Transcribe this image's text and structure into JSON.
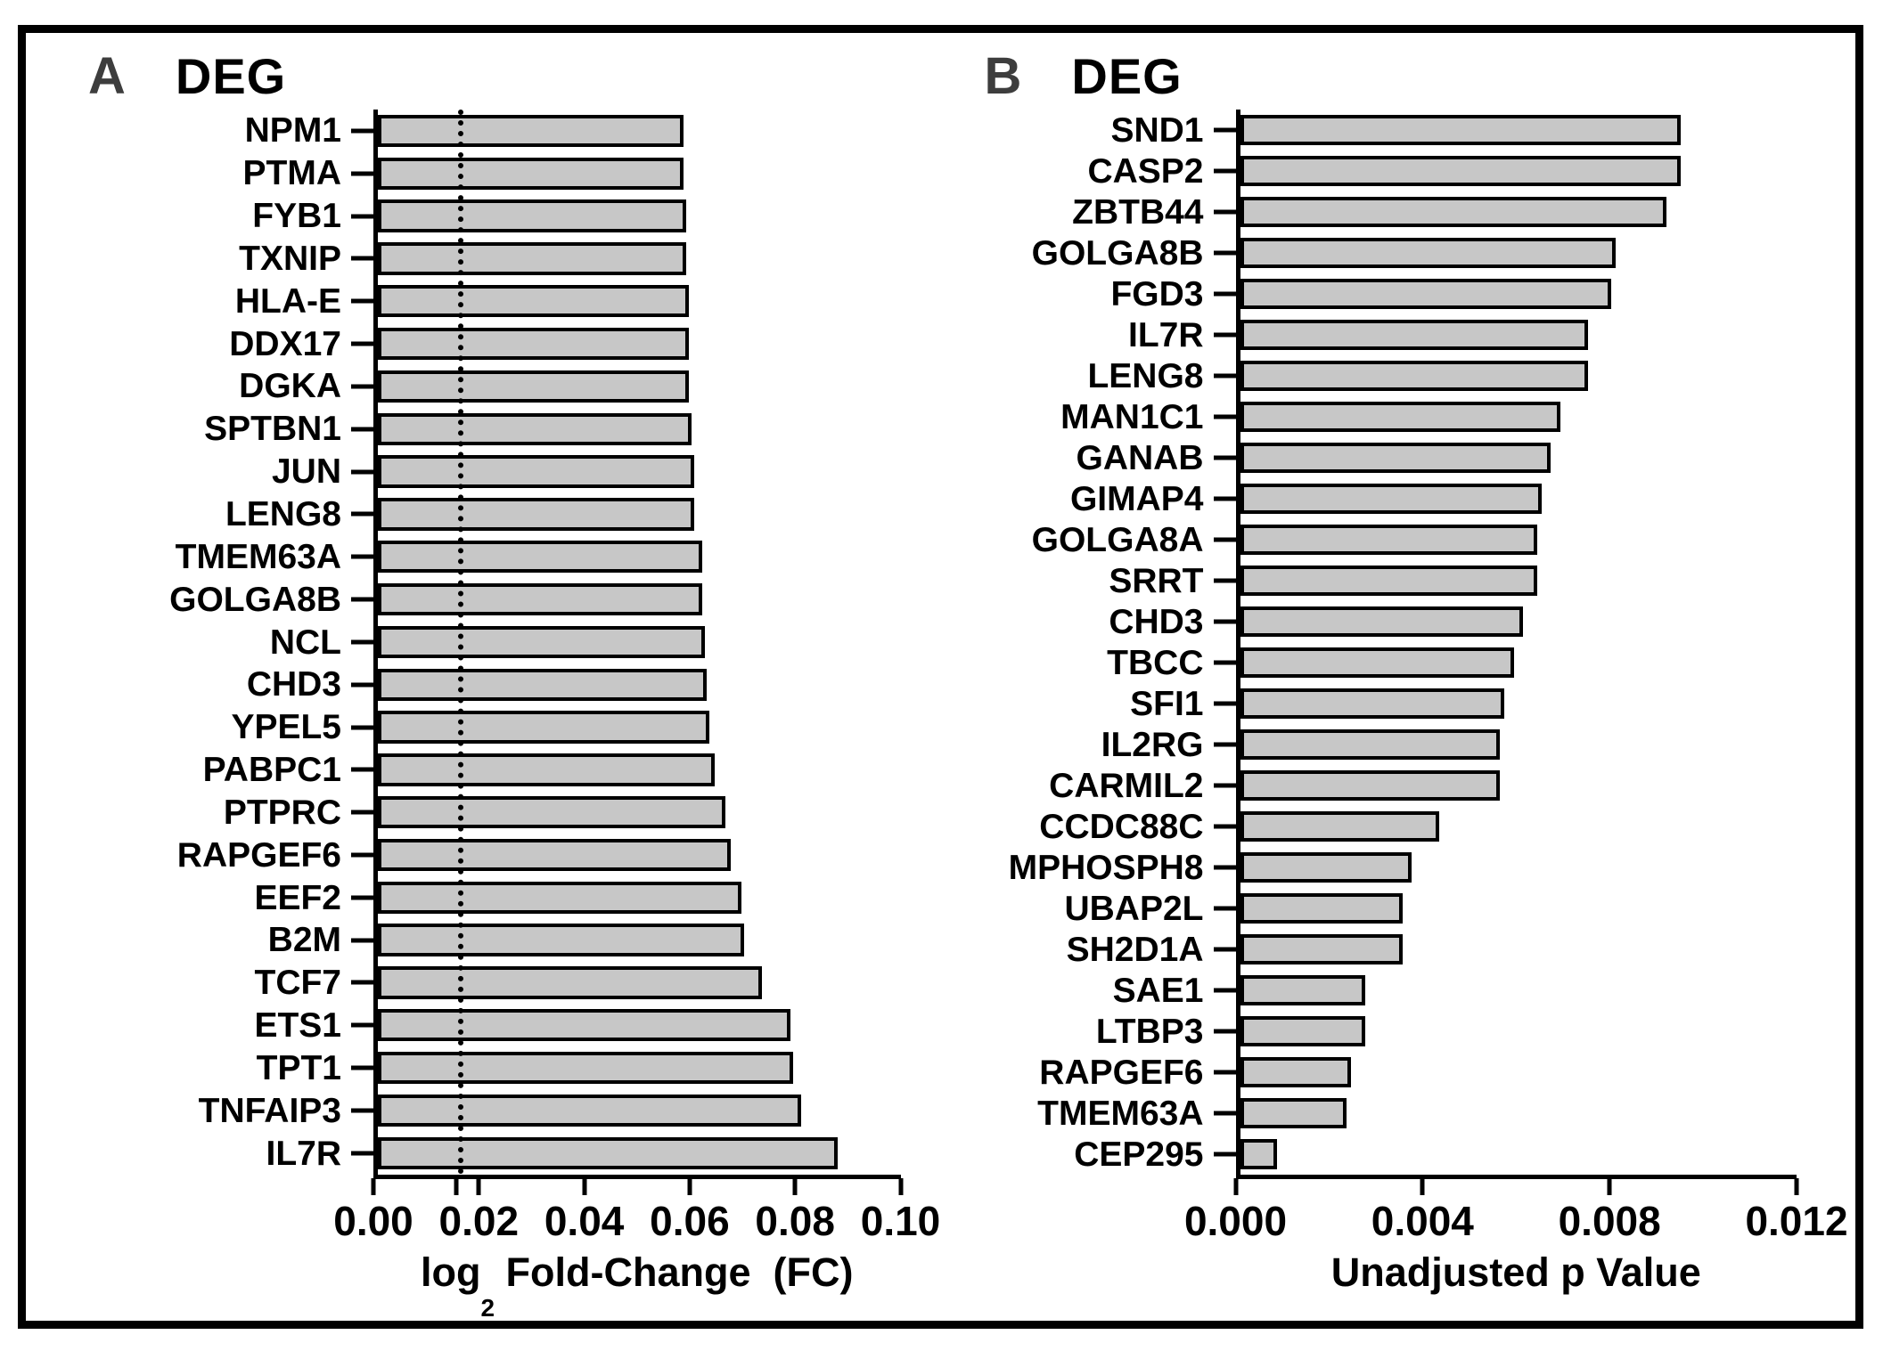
{
  "figure_title": "DEG horizontal bar charts",
  "colors": {
    "bar_fill": "#c7c7c7",
    "bar_border": "#000000",
    "axis": "#000000",
    "panel_letter": "#3d3d3d",
    "background": "#ffffff"
  },
  "panels": [
    {
      "letter": "A",
      "title": "DEG",
      "xlabel_parts": {
        "pre": "log",
        "sub": "2",
        "post": " Fold-Change  (FC)"
      }
    },
    {
      "letter": "B",
      "title": "DEG",
      "xlabel": "Unadjusted p Value"
    }
  ],
  "chart_data": [
    {
      "type": "bar",
      "orientation": "horizontal",
      "panel": "A",
      "title": "DEG",
      "categories": [
        "NPM1",
        "PTMA",
        "FYB1",
        "TXNIP",
        "HLA-E",
        "DDX17",
        "DGKA",
        "SPTBN1",
        "JUN",
        "LENG8",
        "TMEM63A",
        "GOLGA8B",
        "NCL",
        "CHD3",
        "YPEL5",
        "PABPC1",
        "PTPRC",
        "RAPGEF6",
        "EEF2",
        "B2M",
        "TCF7",
        "ETS1",
        "TPT1",
        "TNFAIP3",
        "IL7R"
      ],
      "values": [
        0.0585,
        0.0585,
        0.059,
        0.059,
        0.0595,
        0.0595,
        0.0595,
        0.06,
        0.0605,
        0.0605,
        0.062,
        0.062,
        0.0625,
        0.063,
        0.0635,
        0.0645,
        0.0665,
        0.0675,
        0.0695,
        0.07,
        0.0735,
        0.079,
        0.0795,
        0.081,
        0.088
      ],
      "xlabel": "log2 Fold-Change (FC)",
      "xlim": [
        0,
        0.1
      ],
      "xticks": [
        0,
        0.02,
        0.04,
        0.06,
        0.08,
        0.1
      ],
      "xtick_labels": [
        "0.00",
        "0.02",
        "0.04",
        "0.06",
        "0.08",
        "0.10"
      ],
      "threshold_line": 0.0158,
      "grid": false,
      "legend": false
    },
    {
      "type": "bar",
      "orientation": "horizontal",
      "panel": "B",
      "title": "DEG",
      "categories": [
        "SND1",
        "CASP2",
        "ZBTB44",
        "GOLGA8B",
        "FGD3",
        "IL7R",
        "LENG8",
        "MAN1C1",
        "GANAB",
        "GIMAP4",
        "GOLGA8A",
        "SRRT",
        "CHD3",
        "TBCC",
        "SFI1",
        "IL2RG",
        "CARMIL2",
        "CCDC88C",
        "MPHOSPH8",
        "UBAP2L",
        "SH2D1A",
        "SAE1",
        "LTBP3",
        "RAPGEF6",
        "TMEM63A",
        "CEP295"
      ],
      "values": [
        0.0095,
        0.0095,
        0.0092,
        0.0081,
        0.008,
        0.0075,
        0.0075,
        0.0069,
        0.0067,
        0.0065,
        0.0064,
        0.0064,
        0.0061,
        0.0059,
        0.0057,
        0.0056,
        0.0056,
        0.0043,
        0.0037,
        0.0035,
        0.0035,
        0.0027,
        0.0027,
        0.0024,
        0.0023,
        0.0008
      ],
      "xlabel": "Unadjusted p Value",
      "xlim": [
        0,
        0.012
      ],
      "xticks": [
        0,
        0.004,
        0.008,
        0.012
      ],
      "xtick_labels": [
        "0.000",
        "0.004",
        "0.008",
        "0.012"
      ],
      "threshold_line": null,
      "grid": false,
      "legend": false
    }
  ]
}
